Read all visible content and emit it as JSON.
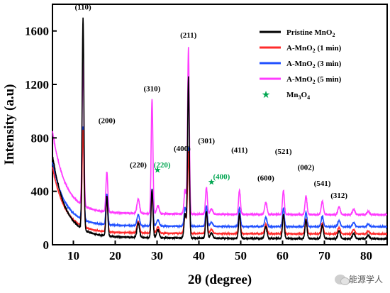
{
  "chart_data": {
    "type": "line",
    "xlabel": "2θ (degree)",
    "ylabel": "Intensity (a.u)",
    "xlim": [
      5,
      85
    ],
    "ylim": [
      0,
      1800
    ],
    "x_ticks": [
      10,
      20,
      30,
      40,
      50,
      60,
      70,
      80
    ],
    "y_ticks": [
      0,
      400,
      800,
      1200,
      1600
    ],
    "legend_position": "top-right",
    "series": [
      {
        "name": "Pristine MnO2",
        "color": "#000000",
        "offset": 0,
        "scale": 1.0,
        "peak_heights": [
          {
            "x": 12.3,
            "y": 1700
          },
          {
            "x": 37.5,
            "y": 1260
          }
        ]
      },
      {
        "name": "A-MnO2 (1 min)",
        "color": "#ff2b2b",
        "offset": 45,
        "scale": 0.8
      },
      {
        "name": "A-MnO2 (3 min)",
        "color": "#2050ff",
        "offset": 100,
        "scale": 0.77
      },
      {
        "name": "A-MnO2 (5 min)",
        "color": "#ff3cff",
        "offset": 180,
        "scale": 1.0,
        "peak_heights": [
          {
            "x": 12.3,
            "y": 1380
          },
          {
            "x": 37.5,
            "y": 1480
          },
          {
            "x": 28.8,
            "y": 1090
          }
        ]
      }
    ],
    "peak_labels": [
      {
        "text": "(110)",
        "x": 12.3,
        "y": 1760,
        "color": "#000000"
      },
      {
        "text": "(200)",
        "x": 18.0,
        "y": 910,
        "color": "#000000"
      },
      {
        "text": "(220)",
        "x": 25.5,
        "y": 580,
        "color": "#000000"
      },
      {
        "text": "(310)",
        "x": 28.8,
        "y": 1150,
        "color": "#000000"
      },
      {
        "text": "(220)",
        "x": 31.2,
        "y": 580,
        "color": "#00a651"
      },
      {
        "text": "(400)",
        "x": 36.0,
        "y": 700,
        "color": "#000000"
      },
      {
        "text": "(211)",
        "x": 37.5,
        "y": 1550,
        "color": "#000000"
      },
      {
        "text": "(301)",
        "x": 41.8,
        "y": 760,
        "color": "#000000"
      },
      {
        "text": "(400)",
        "x": 45.4,
        "y": 490,
        "color": "#00a651"
      },
      {
        "text": "(411)",
        "x": 49.7,
        "y": 690,
        "color": "#000000"
      },
      {
        "text": "(600)",
        "x": 56.0,
        "y": 480,
        "color": "#000000"
      },
      {
        "text": "(521)",
        "x": 60.2,
        "y": 680,
        "color": "#000000"
      },
      {
        "text": "(002)",
        "x": 65.6,
        "y": 560,
        "color": "#000000"
      },
      {
        "text": "(541)",
        "x": 69.5,
        "y": 440,
        "color": "#000000"
      },
      {
        "text": "(312)",
        "x": 73.5,
        "y": 350,
        "color": "#000000"
      }
    ],
    "legend": [
      {
        "label": "Pristine MnO",
        "sub": "2",
        "tail": "",
        "color": "#000000",
        "marker": "line"
      },
      {
        "label": "A-MnO",
        "sub": "2",
        "tail": "  (1 min)",
        "color": "#ff2b2b",
        "marker": "line"
      },
      {
        "label": "A-MnO",
        "sub": "2",
        "tail": "  (3 min)",
        "color": "#2050ff",
        "marker": "line"
      },
      {
        "label": "A-MnO",
        "sub": "2",
        "tail": "  (5 min)",
        "color": "#ff3cff",
        "marker": "line"
      },
      {
        "label": "Mn",
        "sub": "3",
        "tail": "O",
        "sub2": "4",
        "color": "#00a651",
        "marker": "star"
      }
    ],
    "markers": [
      {
        "symbol": "★",
        "x": 30.1,
        "y": 540,
        "color": "#00a651"
      },
      {
        "symbol": "★",
        "x": 43.0,
        "y": 450,
        "color": "#00a651"
      }
    ]
  },
  "watermark": {
    "text": "能源学人"
  }
}
